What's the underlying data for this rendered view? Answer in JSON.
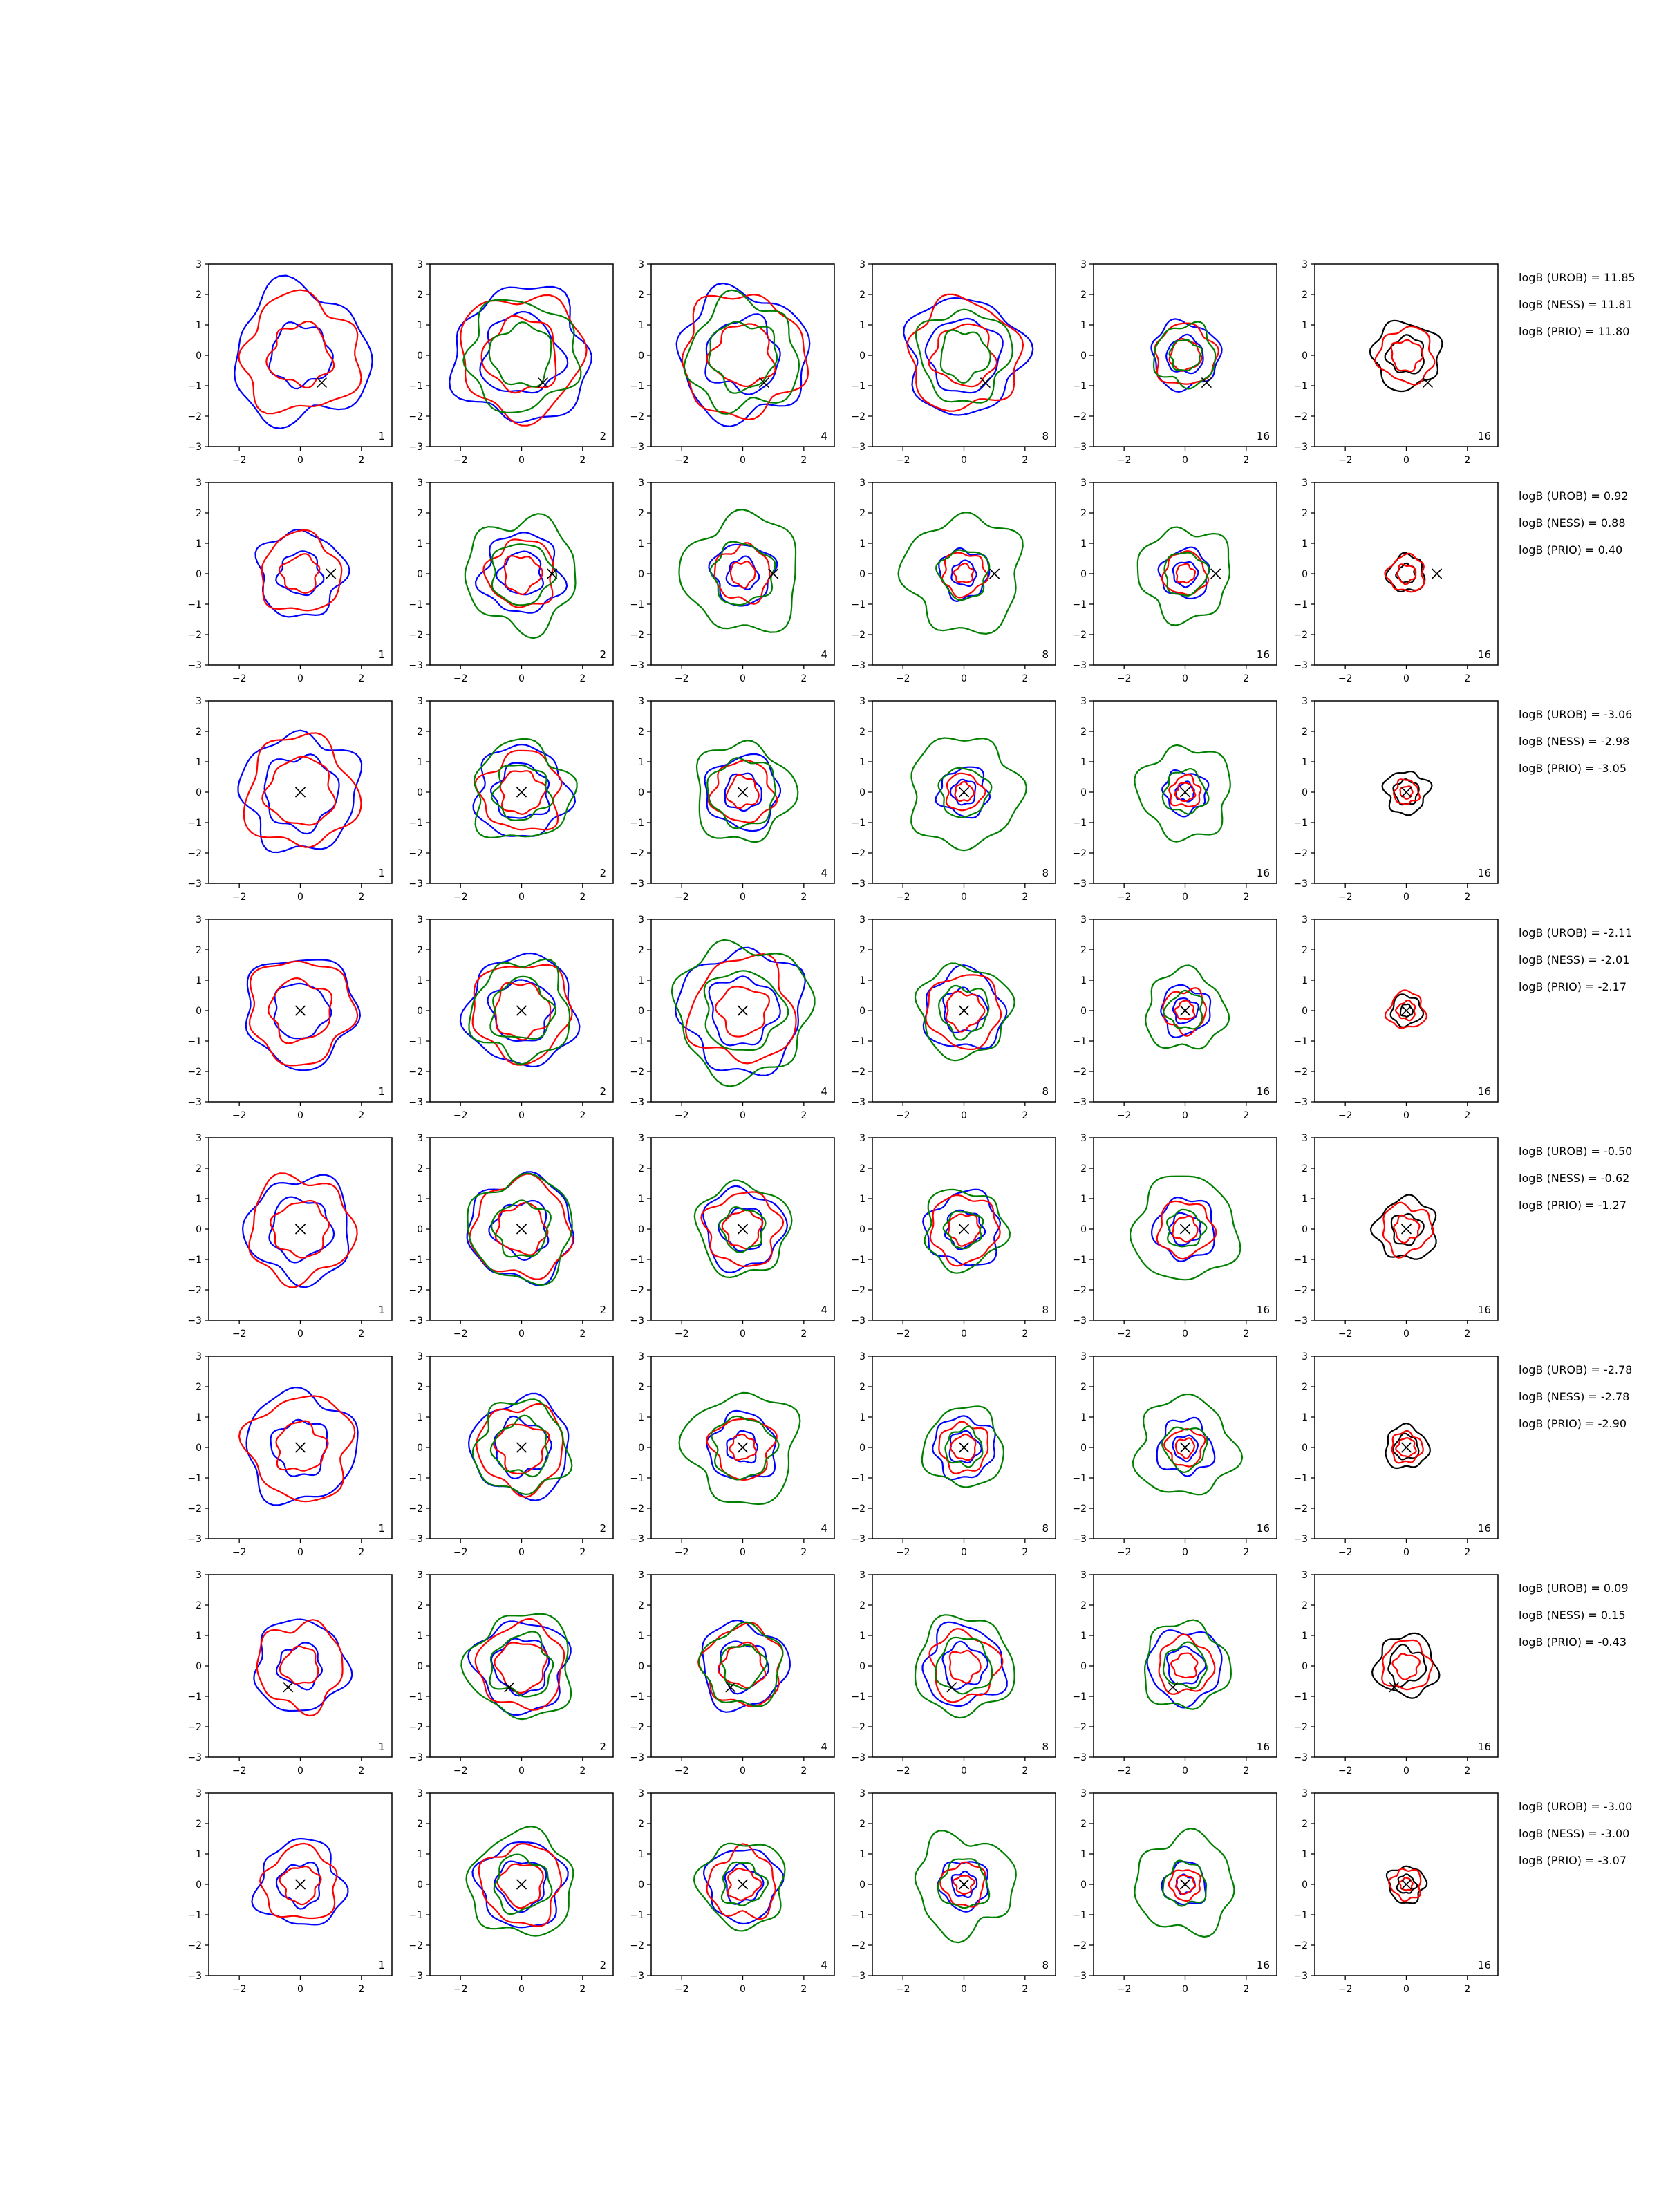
{
  "colors": {
    "blue": "#0000ff",
    "red": "#ff0000",
    "green": "#008000",
    "black": "#000000"
  },
  "chart_data": {
    "type": "contour",
    "axes": {
      "xlim": [
        -3,
        3
      ],
      "ylim": [
        -3,
        3
      ],
      "xticks": [
        -2,
        0,
        2
      ],
      "yticks": [
        -3,
        -2,
        -1,
        0,
        1,
        2,
        3
      ],
      "grid": false
    },
    "columns": [
      "1",
      "2",
      "4",
      "8",
      "16",
      "16"
    ],
    "column_series": [
      [
        "blue",
        "red"
      ],
      [
        "blue",
        "red",
        "green"
      ],
      [
        "blue",
        "red",
        "green"
      ],
      [
        "blue",
        "red",
        "green"
      ],
      [
        "blue",
        "red",
        "green"
      ],
      [
        "black",
        "red"
      ]
    ],
    "rows": [
      {
        "marker": [
          0.7,
          -0.9
        ],
        "annotations": [
          "logB (UROB) = 11.85",
          "logB (NESS) = 11.81",
          "logB (PRIO) = 11.80"
        ],
        "radii": {
          "blue": [
            [
              2.2,
              1.0
            ],
            [
              2.2,
              1.3
            ],
            [
              2.1,
              1.2
            ],
            [
              1.9,
              1.2
            ],
            [
              1.1,
              0.6
            ]
          ],
          "red": [
            [
              1.9,
              1.0
            ],
            [
              2.0,
              1.2
            ],
            [
              2.0,
              1.0
            ],
            [
              1.8,
              1.0
            ],
            [
              1.0,
              0.5
            ],
            [
              0.9,
              0.5
            ]
          ],
          "green": [
            [
              0,
              0
            ],
            [
              1.8,
              1.0
            ],
            [
              1.8,
              1.1
            ],
            [
              1.5,
              0.8
            ],
            [
              1.0,
              0.5
            ]
          ],
          "black": [
            [
              0,
              0
            ],
            [
              0,
              0
            ],
            [
              0,
              0
            ],
            [
              0,
              0
            ],
            [
              0,
              0
            ],
            [
              1.1,
              0.6
            ]
          ]
        }
      },
      {
        "marker": [
          1.0,
          0.0
        ],
        "annotations": [
          "logB (UROB) = 0.92",
          "logB (NESS) = 0.88",
          "logB (PRIO) = 0.40"
        ],
        "radii": {
          "blue": [
            [
              1.4,
              0.7
            ],
            [
              1.3,
              0.7
            ],
            [
              1.0,
              0.5
            ],
            [
              0.8,
              0.4
            ],
            [
              0.8,
              0.4
            ]
          ],
          "red": [
            [
              1.3,
              0.6
            ],
            [
              1.1,
              0.6
            ],
            [
              0.9,
              0.4
            ],
            [
              0.7,
              0.3
            ],
            [
              0.7,
              0.3
            ],
            [
              0.6,
              0.3
            ]
          ],
          "green": [
            [
              0,
              0
            ],
            [
              1.8,
              1.0
            ],
            [
              1.9,
              1.0
            ],
            [
              1.9,
              0.8
            ],
            [
              1.5,
              0.7
            ]
          ],
          "black": [
            [
              0,
              0
            ],
            [
              0,
              0
            ],
            [
              0,
              0
            ],
            [
              0,
              0
            ],
            [
              0,
              0
            ],
            [
              0.6,
              0.3
            ]
          ]
        }
      },
      {
        "marker": [
          0.0,
          0.0
        ],
        "annotations": [
          "logB (UROB) = -3.06",
          "logB (NESS) = -2.98",
          "logB (PRIO) = -3.05"
        ],
        "radii": {
          "blue": [
            [
              1.9,
              1.2
            ],
            [
              1.5,
              0.9
            ],
            [
              1.2,
              0.6
            ],
            [
              0.8,
              0.4
            ],
            [
              0.7,
              0.3
            ]
          ],
          "red": [
            [
              1.8,
              1.1
            ],
            [
              1.3,
              0.7
            ],
            [
              1.0,
              0.5
            ],
            [
              0.6,
              0.3
            ],
            [
              0.5,
              0.3
            ],
            [
              0.4,
              0.2
            ]
          ],
          "green": [
            [
              0,
              0
            ],
            [
              1.6,
              0.9
            ],
            [
              1.6,
              1.1
            ],
            [
              1.8,
              0.8
            ],
            [
              1.5,
              0.7
            ]
          ],
          "black": [
            [
              0,
              0
            ],
            [
              0,
              0
            ],
            [
              0,
              0
            ],
            [
              0,
              0
            ],
            [
              0,
              0
            ],
            [
              0.7,
              0.4
            ]
          ]
        }
      },
      {
        "marker": [
          0.0,
          0.0
        ],
        "annotations": [
          "logB (UROB) = -2.11",
          "logB (NESS) = -2.01",
          "logB (PRIO) = -2.17"
        ],
        "radii": {
          "blue": [
            [
              1.8,
              0.9
            ],
            [
              1.8,
              1.0
            ],
            [
              2.0,
              1.1
            ],
            [
              1.3,
              0.7
            ],
            [
              0.8,
              0.4
            ]
          ],
          "red": [
            [
              1.7,
              1.0
            ],
            [
              1.6,
              0.9
            ],
            [
              1.7,
              0.8
            ],
            [
              1.2,
              0.6
            ],
            [
              0.7,
              0.3
            ],
            [
              0.6,
              0.3
            ]
          ],
          "green": [
            [
              0,
              0
            ],
            [
              1.6,
              1.0
            ],
            [
              2.2,
              1.3
            ],
            [
              1.5,
              0.8
            ],
            [
              1.3,
              0.6
            ]
          ],
          "black": [
            [
              0,
              0
            ],
            [
              0,
              0
            ],
            [
              0,
              0
            ],
            [
              0,
              0
            ],
            [
              0,
              0
            ],
            [
              0.5,
              0.2
            ]
          ]
        }
      },
      {
        "marker": [
          0.0,
          0.0
        ],
        "annotations": [
          "logB (UROB) = -0.50",
          "logB (NESS) = -0.62",
          "logB (PRIO) = -1.27"
        ],
        "radii": {
          "blue": [
            [
              1.7,
              1.0
            ],
            [
              1.7,
              0.9
            ],
            [
              1.3,
              0.7
            ],
            [
              1.2,
              0.6
            ],
            [
              1.0,
              0.5
            ]
          ],
          "red": [
            [
              1.7,
              0.9
            ],
            [
              1.6,
              0.8
            ],
            [
              1.2,
              0.6
            ],
            [
              1.1,
              0.5
            ],
            [
              0.9,
              0.4
            ],
            [
              0.8,
              0.4
            ]
          ],
          "green": [
            [
              0,
              0
            ],
            [
              1.7,
              0.9
            ],
            [
              1.5,
              0.7
            ],
            [
              1.3,
              0.6
            ],
            [
              1.7,
              0.6
            ]
          ],
          "black": [
            [
              0,
              0
            ],
            [
              0,
              0
            ],
            [
              0,
              0
            ],
            [
              0,
              0
            ],
            [
              0,
              0
            ],
            [
              1.0,
              0.5
            ]
          ]
        }
      },
      {
        "marker": [
          0.0,
          0.0
        ],
        "annotations": [
          "logB (UROB) = -2.78",
          "logB (NESS) = -2.78",
          "logB (PRIO) = -2.90"
        ],
        "radii": {
          "blue": [
            [
              1.8,
              0.9
            ],
            [
              1.6,
              0.9
            ],
            [
              1.1,
              0.5
            ],
            [
              1.0,
              0.5
            ],
            [
              0.9,
              0.4
            ]
          ],
          "red": [
            [
              1.7,
              0.8
            ],
            [
              1.4,
              0.8
            ],
            [
              1.0,
              0.4
            ],
            [
              0.8,
              0.4
            ],
            [
              0.6,
              0.3
            ],
            [
              0.5,
              0.3
            ]
          ],
          "green": [
            [
              0,
              0
            ],
            [
              1.5,
              0.9
            ],
            [
              1.8,
              1.0
            ],
            [
              1.3,
              0.6
            ],
            [
              1.6,
              0.7
            ]
          ],
          "black": [
            [
              0,
              0
            ],
            [
              0,
              0
            ],
            [
              0,
              0
            ],
            [
              0,
              0
            ],
            [
              0,
              0
            ],
            [
              0.7,
              0.4
            ]
          ]
        }
      },
      {
        "marker": [
          -0.4,
          -0.7
        ],
        "annotations": [
          "logB (UROB) = 0.09",
          "logB (NESS) = 0.15",
          "logB (PRIO) = -0.43"
        ],
        "radii": {
          "blue": [
            [
              1.5,
              0.7
            ],
            [
              1.5,
              0.9
            ],
            [
              1.4,
              0.8
            ],
            [
              1.3,
              0.7
            ],
            [
              1.2,
              0.6
            ]
          ],
          "red": [
            [
              1.4,
              0.6
            ],
            [
              1.4,
              0.8
            ],
            [
              1.3,
              0.7
            ],
            [
              1.1,
              0.5
            ],
            [
              0.9,
              0.4
            ],
            [
              0.8,
              0.4
            ]
          ],
          "green": [
            [
              0,
              0
            ],
            [
              1.7,
              1.0
            ],
            [
              1.3,
              0.7
            ],
            [
              1.6,
              0.9
            ],
            [
              1.4,
              0.7
            ]
          ],
          "black": [
            [
              0,
              0
            ],
            [
              0,
              0
            ],
            [
              0,
              0
            ],
            [
              0,
              0
            ],
            [
              0,
              0
            ],
            [
              1.0,
              0.6
            ]
          ]
        }
      },
      {
        "marker": [
          0.0,
          0.0
        ],
        "annotations": [
          "logB (UROB) = -3.00",
          "logB (NESS) = -3.00",
          "logB (PRIO) = -3.07"
        ],
        "radii": {
          "blue": [
            [
              1.4,
              0.7
            ],
            [
              1.4,
              0.8
            ],
            [
              1.2,
              0.6
            ],
            [
              0.8,
              0.4
            ],
            [
              0.7,
              0.3
            ]
          ],
          "red": [
            [
              1.2,
              0.6
            ],
            [
              1.3,
              0.7
            ],
            [
              1.1,
              0.5
            ],
            [
              0.7,
              0.3
            ],
            [
              0.5,
              0.3
            ],
            [
              0.5,
              0.2
            ]
          ],
          "green": [
            [
              0,
              0
            ],
            [
              1.7,
              0.9
            ],
            [
              1.4,
              0.7
            ],
            [
              1.6,
              0.8
            ],
            [
              1.6,
              0.7
            ]
          ],
          "black": [
            [
              0,
              0
            ],
            [
              0,
              0
            ],
            [
              0,
              0
            ],
            [
              0,
              0
            ],
            [
              0,
              0
            ],
            [
              0.6,
              0.3
            ]
          ]
        }
      }
    ]
  }
}
